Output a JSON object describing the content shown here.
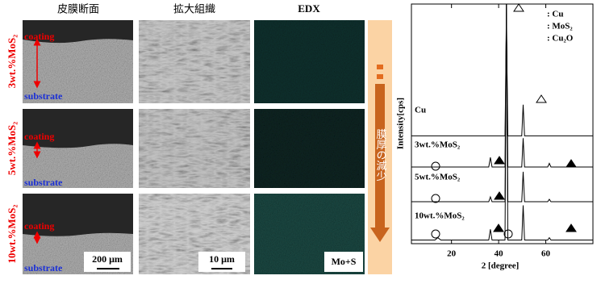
{
  "figure": {
    "column_headers": [
      "皮膜断面",
      "拡大組織",
      "EDX"
    ],
    "rows": [
      {
        "label": "3wt.%MoS₂",
        "coating": "coating",
        "substrate": "substrate"
      },
      {
        "label": "5wt.%MoS₂",
        "coating": "coating",
        "substrate": "substrate"
      },
      {
        "label": "10wt.%MoS₂",
        "coating": "coating",
        "substrate": "substrate"
      }
    ],
    "scale_bars": [
      "200 μm",
      "10 μm"
    ],
    "edx_label": "Mo+S",
    "arrow_text": "膜厚の減少"
  },
  "chart_data": {
    "type": "line",
    "y_label": "Intensity[cps]",
    "x_label": "2 [degree]",
    "legend": [
      ": Cu",
      ": MoS₂",
      ": Cu₂O"
    ],
    "x": [
      3,
      13,
      14.2,
      15.5,
      35.8,
      36.5,
      37.2,
      42.7,
      43.3,
      43.9,
      49.8,
      50.4,
      51.0,
      60.8,
      61.5,
      62.2,
      80
    ],
    "series": [
      {
        "name": "Cu",
        "color": "#000000",
        "values": [
          45,
          45,
          45,
          45,
          45,
          45,
          45,
          45,
          92,
          45,
          45,
          58,
          45,
          45,
          45,
          45,
          45
        ]
      },
      {
        "name": "3wt.%MoS₂",
        "color": "#000000",
        "values": [
          32,
          32,
          32,
          32,
          32,
          36,
          32,
          32,
          100,
          32,
          32,
          44,
          32,
          32,
          33.5,
          32,
          32
        ]
      },
      {
        "name": "5wt.%MoS₂",
        "color": "#000000",
        "values": [
          17.5,
          17.5,
          17.5,
          17.5,
          17.5,
          19.5,
          17.5,
          17.5,
          100,
          17.5,
          17.5,
          30,
          17.5,
          17.5,
          18.5,
          17.5,
          17.5
        ]
      },
      {
        "name": "10wt.%MoS₂",
        "color": "#000000",
        "values": [
          1.5,
          1.5,
          2.5,
          1.5,
          1.5,
          6,
          1.5,
          1.5,
          100,
          1.5,
          1.5,
          16,
          1.5,
          1.5,
          2.5,
          1.5,
          1.5
        ]
      }
    ],
    "xlim": [
      3,
      80
    ],
    "ylim": [
      0,
      100
    ],
    "xticks": [
      20,
      40,
      60
    ]
  }
}
